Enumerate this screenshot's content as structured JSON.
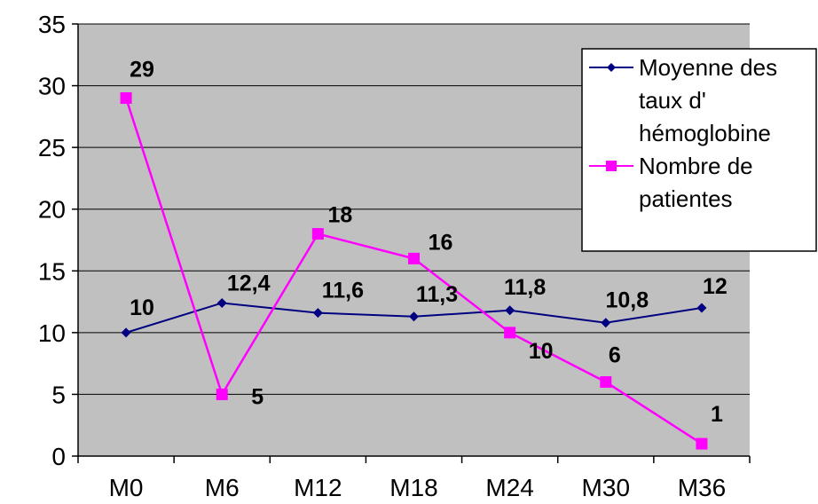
{
  "chart_data": {
    "type": "line",
    "categories": [
      "M0",
      "M6",
      "M12",
      "M18",
      "M24",
      "M30",
      "M36"
    ],
    "ylim": [
      0,
      35
    ],
    "y_ticks": [
      "0",
      "5",
      "10",
      "15",
      "20",
      "25",
      "30",
      "35"
    ],
    "grid": true,
    "plot_background": "#c0c0c0",
    "legend_position": "top-right",
    "series": [
      {
        "name": "Moyenne des taux d' hémoglobine",
        "legend_lines": [
          "Moyenne des",
          "taux d'",
          "hémoglobine"
        ],
        "values": [
          10,
          12.4,
          11.6,
          11.3,
          11.8,
          10.8,
          12
        ],
        "labels": [
          "10",
          "12,4",
          "11,6",
          "11,3",
          "11,8",
          "10,8",
          "12"
        ],
        "color": "#000080",
        "marker": "diamond"
      },
      {
        "name": "Nombre de patientes",
        "legend_lines": [
          "Nombre de",
          "patientes"
        ],
        "values": [
          29,
          5,
          18,
          16,
          10,
          6,
          1
        ],
        "labels": [
          "29",
          "5",
          "18",
          "16",
          "10",
          "6",
          "1"
        ],
        "color": "#ff00ff",
        "marker": "square"
      }
    ]
  }
}
